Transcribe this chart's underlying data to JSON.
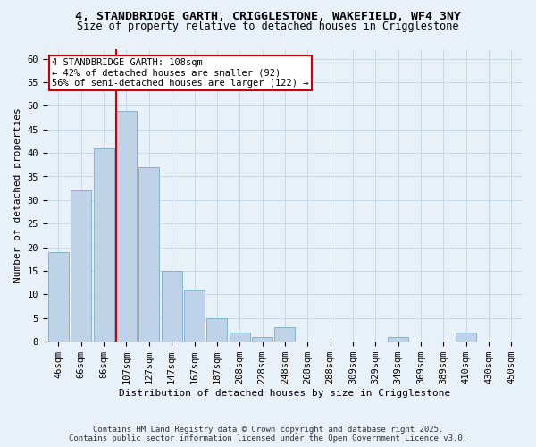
{
  "title_line1": "4, STANDBRIDGE GARTH, CRIGGLESTONE, WAKEFIELD, WF4 3NY",
  "title_line2": "Size of property relative to detached houses in Crigglestone",
  "xlabel": "Distribution of detached houses by size in Crigglestone",
  "ylabel": "Number of detached properties",
  "bin_labels": [
    "46sqm",
    "66sqm",
    "86sqm",
    "107sqm",
    "127sqm",
    "147sqm",
    "167sqm",
    "187sqm",
    "208sqm",
    "228sqm",
    "248sqm",
    "268sqm",
    "288sqm",
    "309sqm",
    "329sqm",
    "349sqm",
    "369sqm",
    "389sqm",
    "410sqm",
    "430sqm",
    "450sqm"
  ],
  "bar_values": [
    19,
    32,
    41,
    49,
    37,
    15,
    11,
    5,
    2,
    1,
    3,
    0,
    0,
    0,
    0,
    1,
    0,
    0,
    2,
    0,
    0
  ],
  "bar_color": "#bed3e8",
  "bar_edge_color": "#7aaac8",
  "vline_bar_index": 3,
  "vline_color": "#cc0000",
  "annotation_text": "4 STANDBRIDGE GARTH: 108sqm\n← 42% of detached houses are smaller (92)\n56% of semi-detached houses are larger (122) →",
  "annotation_box_color": "#ffffff",
  "annotation_box_edge": "#cc0000",
  "ylim": [
    0,
    62
  ],
  "yticks": [
    0,
    5,
    10,
    15,
    20,
    25,
    30,
    35,
    40,
    45,
    50,
    55,
    60
  ],
  "grid_color": "#c8d8e8",
  "background_color": "#e8f0f8",
  "footer": "Contains HM Land Registry data © Crown copyright and database right 2025.\nContains public sector information licensed under the Open Government Licence v3.0.",
  "title_fontsize": 9.5,
  "subtitle_fontsize": 8.5,
  "axis_label_fontsize": 8,
  "tick_fontsize": 7.5,
  "annotation_fontsize": 7.5,
  "footer_fontsize": 6.5
}
